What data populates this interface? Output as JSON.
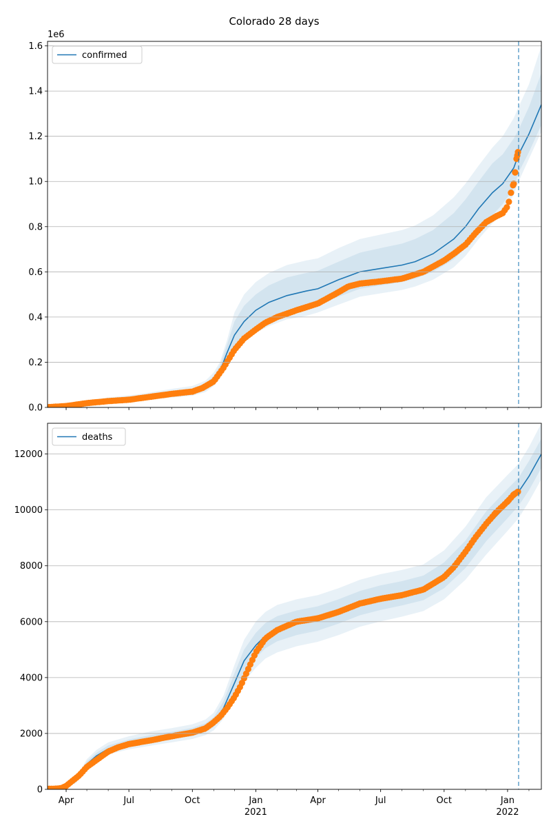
{
  "title": "Colorado 28 days",
  "colors": {
    "model_line": "#1f77b4",
    "band": "#1f77b4",
    "observed": "#ff7f0e",
    "forecast_line": "#1f77b4",
    "grid": "#b0b0b0"
  },
  "x_axis": {
    "ticks": [
      {
        "date": "2020-04-01",
        "label": "Apr",
        "year": ""
      },
      {
        "date": "2020-07-01",
        "label": "Jul",
        "year": ""
      },
      {
        "date": "2020-10-01",
        "label": "Oct",
        "year": ""
      },
      {
        "date": "2021-01-01",
        "label": "Jan",
        "year": "2021"
      },
      {
        "date": "2021-04-01",
        "label": "Apr",
        "year": ""
      },
      {
        "date": "2021-07-01",
        "label": "Jul",
        "year": ""
      },
      {
        "date": "2021-10-01",
        "label": "Oct",
        "year": ""
      },
      {
        "date": "2022-01-01",
        "label": "Jan",
        "year": "2022"
      }
    ],
    "range": [
      "2020-03-05",
      "2022-02-19"
    ]
  },
  "chart_data": [
    {
      "type": "line",
      "panel": "top",
      "legend": "confirmed",
      "legend_position": "top-left",
      "offset_label": "1e6",
      "ylim": [
        0,
        1.62
      ],
      "yticks": [
        "0.0",
        "0.2",
        "0.4",
        "0.6",
        "0.8",
        "1.0",
        "1.2",
        "1.4",
        "1.6"
      ],
      "grid": true,
      "forecast_start": "2022-01-17",
      "model": {
        "x": [
          "2020-03-05",
          "2020-04-15",
          "2020-06-01",
          "2020-07-15",
          "2020-09-01",
          "2020-10-01",
          "2020-10-20",
          "2020-11-01",
          "2020-11-10",
          "2020-11-20",
          "2020-12-01",
          "2020-12-15",
          "2021-01-01",
          "2021-01-20",
          "2021-02-15",
          "2021-03-15",
          "2021-04-01",
          "2021-05-01",
          "2021-06-01",
          "2021-07-01",
          "2021-08-01",
          "2021-08-20",
          "2021-09-15",
          "2021-10-15",
          "2021-11-01",
          "2021-11-20",
          "2021-12-10",
          "2021-12-25",
          "2022-01-10",
          "2022-01-17",
          "2022-02-01",
          "2022-02-19"
        ],
        "y": [
          0.0,
          0.012,
          0.03,
          0.04,
          0.06,
          0.07,
          0.09,
          0.12,
          0.16,
          0.24,
          0.32,
          0.38,
          0.43,
          0.465,
          0.495,
          0.515,
          0.525,
          0.565,
          0.6,
          0.615,
          0.63,
          0.645,
          0.68,
          0.745,
          0.8,
          0.88,
          0.95,
          0.99,
          1.06,
          1.12,
          1.21,
          1.34
        ],
        "bands": [
          {
            "lo": [
              0.0,
              0.008,
              0.024,
              0.033,
              0.05,
              0.058,
              0.076,
              0.104,
              0.14,
              0.21,
              0.27,
              0.32,
              0.36,
              0.39,
              0.42,
              0.44,
              0.455,
              0.49,
              0.525,
              0.54,
              0.555,
              0.57,
              0.6,
              0.655,
              0.705,
              0.78,
              0.85,
              0.9,
              0.97,
              1.04,
              1.13,
              1.25
            ],
            "hi": [
              0.0,
              0.018,
              0.038,
              0.05,
              0.072,
              0.084,
              0.106,
              0.14,
              0.185,
              0.275,
              0.38,
              0.45,
              0.5,
              0.54,
              0.575,
              0.595,
              0.605,
              0.645,
              0.685,
              0.705,
              0.725,
              0.745,
              0.785,
              0.86,
              0.92,
              1.0,
              1.08,
              1.12,
              1.19,
              1.23,
              1.33,
              1.48
            ]
          },
          {
            "lo": [
              0.0,
              0.006,
              0.02,
              0.028,
              0.044,
              0.052,
              0.068,
              0.095,
              0.128,
              0.195,
              0.245,
              0.29,
              0.33,
              0.36,
              0.39,
              0.405,
              0.42,
              0.455,
              0.49,
              0.505,
              0.52,
              0.535,
              0.565,
              0.62,
              0.67,
              0.745,
              0.815,
              0.865,
              0.94,
              1.0,
              1.1,
              1.22
            ],
            "hi": [
              0.0,
              0.022,
              0.044,
              0.058,
              0.082,
              0.095,
              0.118,
              0.155,
              0.2,
              0.295,
              0.42,
              0.5,
              0.555,
              0.595,
              0.63,
              0.65,
              0.66,
              0.705,
              0.745,
              0.765,
              0.785,
              0.805,
              0.85,
              0.93,
              0.99,
              1.07,
              1.15,
              1.2,
              1.28,
              1.33,
              1.43,
              1.6
            ]
          }
        ]
      },
      "observed": {
        "x": [
          "2020-03-05",
          "2020-04-01",
          "2020-05-01",
          "2020-06-01",
          "2020-07-01",
          "2020-08-01",
          "2020-09-01",
          "2020-10-01",
          "2020-10-15",
          "2020-11-01",
          "2020-11-15",
          "2020-12-01",
          "2020-12-15",
          "2021-01-01",
          "2021-01-15",
          "2021-02-01",
          "2021-03-01",
          "2021-04-01",
          "2021-05-01",
          "2021-05-15",
          "2021-06-01",
          "2021-07-01",
          "2021-08-01",
          "2021-09-01",
          "2021-10-01",
          "2021-10-15",
          "2021-11-01",
          "2021-11-15",
          "2021-12-01",
          "2021-12-15",
          "2021-12-25",
          "2022-01-01",
          "2022-01-05",
          "2022-01-07",
          "2022-01-10",
          "2022-01-12",
          "2022-01-14",
          "2022-01-16"
        ],
        "y": [
          0.001,
          0.006,
          0.019,
          0.028,
          0.034,
          0.047,
          0.06,
          0.07,
          0.085,
          0.115,
          0.175,
          0.255,
          0.305,
          0.345,
          0.375,
          0.4,
          0.43,
          0.46,
          0.51,
          0.535,
          0.548,
          0.558,
          0.57,
          0.6,
          0.65,
          0.68,
          0.72,
          0.77,
          0.82,
          0.845,
          0.86,
          0.89,
          0.93,
          0.97,
          0.99,
          1.04,
          1.1,
          1.13
        ]
      }
    },
    {
      "type": "line",
      "panel": "bottom",
      "legend": "deaths",
      "legend_position": "top-left",
      "ylim": [
        0,
        13100
      ],
      "yticks": [
        "0",
        "2000",
        "4000",
        "6000",
        "8000",
        "10000",
        "12000"
      ],
      "grid": true,
      "forecast_start": "2022-01-17",
      "model": {
        "x": [
          "2020-03-05",
          "2020-03-25",
          "2020-04-15",
          "2020-05-01",
          "2020-05-15",
          "2020-06-01",
          "2020-07-01",
          "2020-08-01",
          "2020-09-01",
          "2020-10-01",
          "2020-10-20",
          "2020-11-01",
          "2020-11-15",
          "2020-12-01",
          "2020-12-15",
          "2021-01-01",
          "2021-01-15",
          "2021-02-01",
          "2021-03-01",
          "2021-04-01",
          "2021-05-01",
          "2021-06-01",
          "2021-07-01",
          "2021-08-01",
          "2021-09-01",
          "2021-10-01",
          "2021-11-01",
          "2021-12-01",
          "2022-01-01",
          "2022-01-17",
          "2022-02-01",
          "2022-02-19"
        ],
        "y": [
          0,
          30,
          300,
          900,
          1200,
          1450,
          1650,
          1800,
          1920,
          2050,
          2200,
          2400,
          2900,
          3800,
          4600,
          5150,
          5500,
          5750,
          5950,
          6100,
          6350,
          6650,
          6850,
          7000,
          7200,
          7650,
          8400,
          9400,
          10200,
          10650,
          11200,
          12000
        ],
        "bands": [
          {
            "lo": [
              0,
              20,
              250,
              820,
              1100,
              1340,
              1530,
              1670,
              1790,
              1910,
              2050,
              2230,
              2680,
              3450,
              4150,
              4700,
              5050,
              5300,
              5520,
              5680,
              5930,
              6230,
              6420,
              6580,
              6770,
              7200,
              7920,
              8880,
              9700,
              10150,
              10700,
              11500
            ],
            "hi": [
              0,
              40,
              360,
              1000,
              1310,
              1570,
              1780,
              1940,
              2060,
              2200,
              2360,
              2580,
              3150,
              4150,
              5000,
              5600,
              5950,
              6200,
              6400,
              6550,
              6800,
              7100,
              7300,
              7450,
              7650,
              8120,
              8900,
              9950,
              10750,
              11150,
              11750,
              12550
            ]
          },
          {
            "lo": [
              0,
              15,
              220,
              760,
              1020,
              1250,
              1430,
              1560,
              1680,
              1800,
              1940,
              2110,
              2520,
              3200,
              3850,
              4350,
              4680,
              4900,
              5120,
              5280,
              5520,
              5820,
              6010,
              6180,
              6380,
              6800,
              7500,
              8400,
              9250,
              9700,
              10300,
              11100
            ],
            "hi": [
              0,
              50,
              400,
              1080,
              1410,
              1680,
              1900,
              2070,
              2190,
              2330,
              2500,
              2740,
              3350,
              4450,
              5350,
              6000,
              6350,
              6600,
              6800,
              6950,
              7200,
              7500,
              7700,
              7850,
              8050,
              8550,
              9400,
              10450,
              11250,
              11650,
              12250,
              13100
            ]
          }
        ]
      },
      "observed": {
        "x": [
          "2020-03-05",
          "2020-03-15",
          "2020-03-25",
          "2020-04-01",
          "2020-04-10",
          "2020-04-20",
          "2020-05-01",
          "2020-05-15",
          "2020-06-01",
          "2020-06-15",
          "2020-07-01",
          "2020-08-01",
          "2020-09-01",
          "2020-10-01",
          "2020-10-20",
          "2020-11-01",
          "2020-11-10",
          "2020-11-20",
          "2020-12-01",
          "2020-12-10",
          "2020-12-20",
          "2021-01-01",
          "2021-01-15",
          "2021-02-01",
          "2021-03-01",
          "2021-04-01",
          "2021-05-01",
          "2021-06-01",
          "2021-07-01",
          "2021-08-01",
          "2021-09-01",
          "2021-10-01",
          "2021-10-15",
          "2021-11-01",
          "2021-11-15",
          "2021-12-01",
          "2021-12-15",
          "2022-01-01",
          "2022-01-10",
          "2022-01-16"
        ],
        "y": [
          20,
          20,
          40,
          120,
          300,
          500,
          800,
          1050,
          1350,
          1500,
          1620,
          1750,
          1900,
          2030,
          2180,
          2400,
          2600,
          2900,
          3300,
          3700,
          4250,
          4900,
          5400,
          5700,
          6000,
          6120,
          6350,
          6650,
          6820,
          6950,
          7150,
          7600,
          7950,
          8500,
          9000,
          9500,
          9900,
          10300,
          10550,
          10650
        ]
      }
    }
  ]
}
